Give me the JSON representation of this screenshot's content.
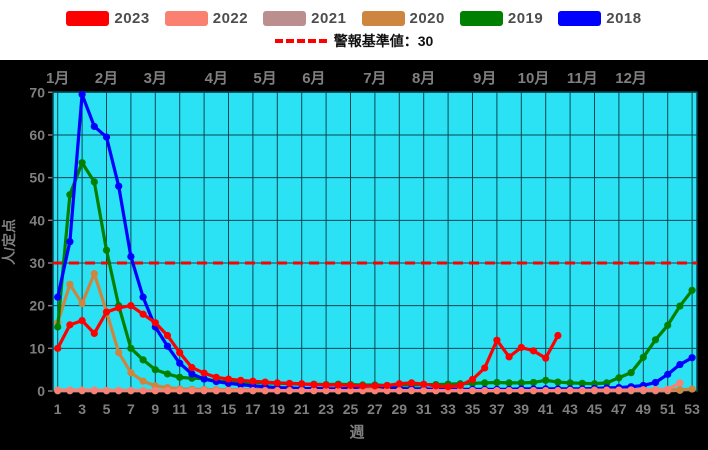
{
  "legend": {
    "items": [
      {
        "label": "2023",
        "color": "#ff0000"
      },
      {
        "label": "2022",
        "color": "#fa8072"
      },
      {
        "label": "2021",
        "color": "#bc8f8f"
      },
      {
        "label": "2020",
        "color": "#cd853f"
      },
      {
        "label": "2019",
        "color": "#008000"
      },
      {
        "label": "2018",
        "color": "#0000ff"
      }
    ]
  },
  "colors": {
    "page_background": "#000000",
    "legend_background": "#ffffff",
    "plot_background": "#2be1f4",
    "grid_line": "#0a4652",
    "axis_text": "#7f7f7f",
    "threshold_red": "#ff0000"
  },
  "chart_data": {
    "type": "line",
    "title": "",
    "xlabel": "週",
    "ylabel": "人/定点",
    "ylim": [
      0,
      70
    ],
    "x_week_range": [
      1,
      53
    ],
    "grid": true,
    "y_ticks": [
      0,
      10,
      20,
      30,
      40,
      50,
      60,
      70
    ],
    "x_ticks": [
      1,
      3,
      5,
      7,
      9,
      11,
      13,
      15,
      17,
      19,
      21,
      23,
      25,
      27,
      29,
      31,
      33,
      35,
      37,
      39,
      41,
      43,
      45,
      47,
      49,
      51,
      53
    ],
    "month_axis": [
      {
        "label": "1月",
        "start_week": 1
      },
      {
        "label": "2月",
        "start_week": 5
      },
      {
        "label": "3月",
        "start_week": 9
      },
      {
        "label": "4月",
        "start_week": 14
      },
      {
        "label": "5月",
        "start_week": 18
      },
      {
        "label": "6月",
        "start_week": 22
      },
      {
        "label": "7月",
        "start_week": 27
      },
      {
        "label": "8月",
        "start_week": 31
      },
      {
        "label": "9月",
        "start_week": 36
      },
      {
        "label": "10月",
        "start_week": 40
      },
      {
        "label": "11月",
        "start_week": 44
      },
      {
        "label": "12月",
        "start_week": 48
      }
    ],
    "threshold": {
      "label": "警報基準値：30",
      "value": 30,
      "color": "#ff0000",
      "style": "dashed"
    },
    "legend_position": "top",
    "draw_order": [
      "2021",
      "2020",
      "2019",
      "2018",
      "2022",
      "2023"
    ],
    "series": [
      {
        "name": "2023",
        "color": "#ff0000",
        "start_week": 1,
        "values": [
          10,
          15.5,
          16.5,
          13.5,
          18.5,
          19.5,
          20,
          18,
          16,
          13,
          9,
          5.5,
          4.2,
          3.2,
          2.8,
          2.5,
          2.3,
          2.1,
          1.9,
          1.8,
          1.7,
          1.5,
          1.4,
          1.4,
          1.3,
          1.2,
          1.2,
          1.3,
          1.7,
          1.9,
          1.6,
          1.2,
          1.0,
          1.3,
          2.7,
          5.4,
          11.9,
          8.0,
          10.2,
          9.4,
          7.7,
          13.0
        ]
      },
      {
        "name": "2022",
        "color": "#fa8072",
        "start_week": 1,
        "values": [
          0.2,
          0.2,
          0.2,
          0.2,
          0.15,
          0.15,
          0.15,
          0.1,
          0.1,
          0.1,
          0.1,
          0.1,
          0.1,
          0.1,
          0.1,
          0.1,
          0.1,
          0.1,
          0.1,
          0.1,
          0.1,
          0.1,
          0.1,
          0.1,
          0.1,
          0.1,
          0.1,
          0.1,
          0.1,
          0.1,
          0.1,
          0.1,
          0.1,
          0.1,
          0.1,
          0.1,
          0.1,
          0.1,
          0.1,
          0.1,
          0.1,
          0.1,
          0.15,
          0.15,
          0.2,
          0.2,
          0.2,
          0.25,
          0.3,
          0.3,
          0.4,
          1.9
        ]
      },
      {
        "name": "2021",
        "color": "#bc8f8f",
        "start_week": 1,
        "values": [
          0.05,
          0.05,
          0.05,
          0.05,
          0.05,
          0.05,
          0.05,
          0.05,
          0.05,
          0.05,
          0.05,
          0.05,
          0.05,
          0.05,
          0.05,
          0.05,
          0.05,
          0.05,
          0.05,
          0.05,
          0.05,
          0.05,
          0.05,
          0.05,
          0.05,
          0.05,
          0.05,
          0.05,
          0.05,
          0.05,
          0.05,
          0.05,
          0.05,
          0.05,
          0.05,
          0.05,
          0.05,
          0.05,
          0.05,
          0.05,
          0.05,
          0.05,
          0.05,
          0.05,
          0.05,
          0.05,
          0.05,
          0.05,
          0.05,
          0.05,
          0.05,
          0.15
        ]
      },
      {
        "name": "2020",
        "color": "#cd853f",
        "start_week": 1,
        "values": [
          16,
          25,
          20.5,
          27.5,
          18.6,
          9,
          4.3,
          2.3,
          1.2,
          0.8,
          0.5,
          0.4,
          0.35,
          0.3,
          0.3,
          0.3,
          0.3,
          0.3,
          0.3,
          0.3,
          0.3,
          0.3,
          0.3,
          0.3,
          0.3,
          0.3,
          0.3,
          0.3,
          0.3,
          0.3,
          0.3,
          0.3,
          0.3,
          0.3,
          0.3,
          0.3,
          0.3,
          0.3,
          0.3,
          0.3,
          0.3,
          0.3,
          0.3,
          0.3,
          0.3,
          0.3,
          0.3,
          0.3,
          0.3,
          0.3,
          0.3,
          0.3,
          0.45
        ]
      },
      {
        "name": "2019",
        "color": "#008000",
        "start_week": 1,
        "values": [
          15,
          46,
          53.5,
          49,
          33,
          20,
          10,
          7.3,
          5,
          4,
          3.2,
          3.0,
          2.9,
          2.3,
          2.2,
          2.1,
          2.0,
          1.9,
          1.8,
          1.7,
          1.6,
          1.6,
          1.5,
          1.6,
          1.5,
          1.4,
          1.4,
          1.3,
          1.4,
          1.4,
          1.5,
          1.5,
          1.6,
          1.7,
          1.8,
          1.9,
          2.0,
          1.9,
          1.9,
          2.0,
          2.5,
          2.1,
          1.9,
          1.8,
          1.7,
          1.9,
          3.1,
          4.3,
          7.9,
          12.0,
          15.4,
          19.9,
          23.6
        ]
      },
      {
        "name": "2018",
        "color": "#0000ff",
        "start_week": 1,
        "values": [
          22,
          35,
          69.5,
          62,
          59.5,
          48,
          31.5,
          22,
          15,
          10.5,
          6.5,
          4.0,
          2.8,
          2.2,
          1.8,
          1.5,
          1.2,
          1.0,
          0.8,
          0.7,
          0.6,
          0.6,
          0.5,
          0.5,
          0.6,
          1.1,
          1.2,
          0.8,
          0.6,
          0.5,
          0.5,
          0.4,
          0.4,
          0.4,
          0.4,
          0.4,
          0.4,
          0.4,
          0.5,
          0.5,
          0.5,
          0.5,
          0.5,
          0.5,
          0.6,
          0.7,
          0.8,
          1.0,
          1.3,
          2.0,
          3.9,
          6.2,
          7.8
        ]
      }
    ]
  }
}
